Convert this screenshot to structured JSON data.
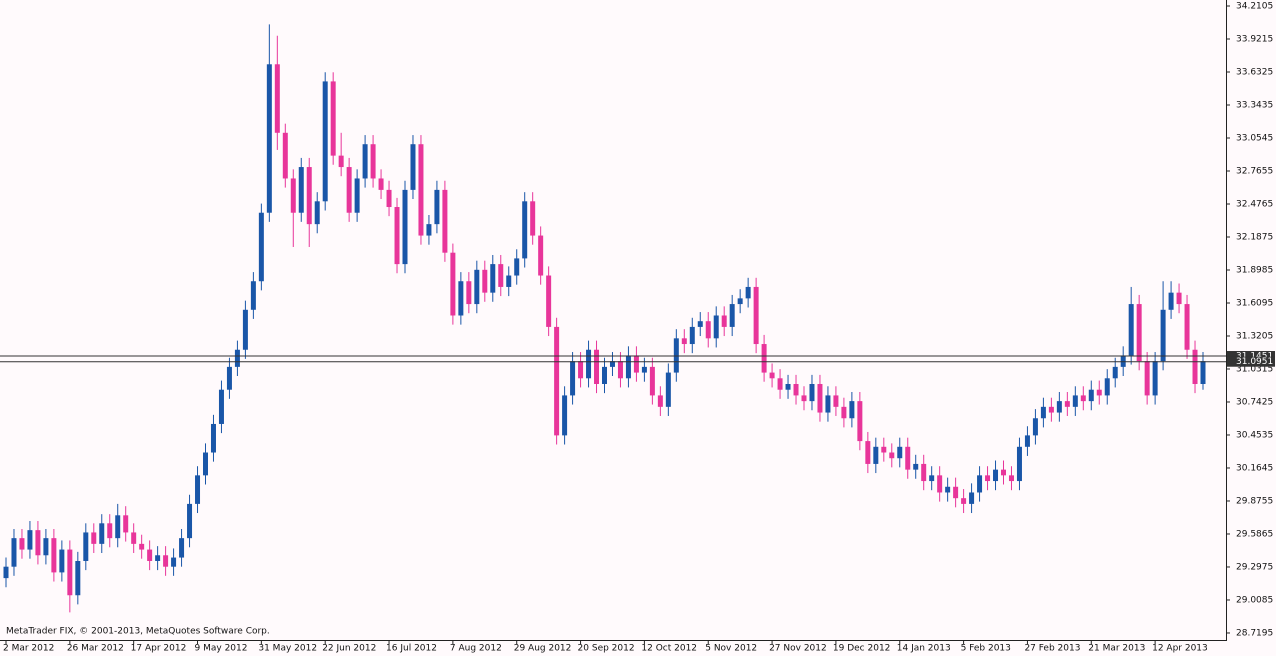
{
  "chart_data": {
    "type": "candlestick",
    "footer": "MetaTrader FIX, © 2001-2013, MetaQuotes Software Corp.",
    "categories": [
      "2 Mar 2012",
      null,
      null,
      null,
      null,
      null,
      null,
      null,
      "26 Mar 2012",
      null,
      null,
      null,
      null,
      null,
      null,
      null,
      "17 Apr 2012",
      null,
      null,
      null,
      null,
      null,
      null,
      null,
      "9 May 2012",
      null,
      null,
      null,
      null,
      null,
      null,
      null,
      "31 May 2012",
      null,
      null,
      null,
      null,
      null,
      null,
      null,
      "22 Jun 2012",
      null,
      null,
      null,
      null,
      null,
      null,
      null,
      "16 Jul 2012",
      null,
      null,
      null,
      null,
      null,
      null,
      null,
      "7 Aug 2012",
      null,
      null,
      null,
      null,
      null,
      null,
      null,
      "29 Aug 2012",
      null,
      null,
      null,
      null,
      null,
      null,
      null,
      "20 Sep 2012",
      null,
      null,
      null,
      null,
      null,
      null,
      null,
      "12 Oct 2012",
      null,
      null,
      null,
      null,
      null,
      null,
      null,
      "5 Nov 2012",
      null,
      null,
      null,
      null,
      null,
      null,
      null,
      "27 Nov 2012",
      null,
      null,
      null,
      null,
      null,
      null,
      null,
      "19 Dec 2012",
      null,
      null,
      null,
      null,
      null,
      null,
      null,
      "14 Jan 2013",
      null,
      null,
      null,
      null,
      null,
      null,
      null,
      "5 Feb 2013",
      null,
      null,
      null,
      null,
      null,
      null,
      null,
      "27 Feb 2013",
      null,
      null,
      null,
      null,
      null,
      null,
      null,
      "21 Mar 2013",
      null,
      null,
      null,
      null,
      null,
      null,
      null,
      "12 Apr 2013",
      null,
      null,
      null,
      null,
      null,
      null
    ],
    "open": [
      29.2,
      29.3,
      29.55,
      29.45,
      29.62,
      29.4,
      29.55,
      29.25,
      29.45,
      29.05,
      29.35,
      29.6,
      29.5,
      29.68,
      29.55,
      29.75,
      29.6,
      29.5,
      29.45,
      29.35,
      29.4,
      29.3,
      29.38,
      29.55,
      29.85,
      30.1,
      30.3,
      30.55,
      30.85,
      31.05,
      31.2,
      31.55,
      31.8,
      32.4,
      33.7,
      33.1,
      32.7,
      32.4,
      32.8,
      32.3,
      32.5,
      33.55,
      32.9,
      32.8,
      32.4,
      32.7,
      33.0,
      32.7,
      32.6,
      32.45,
      31.95,
      32.6,
      33.0,
      32.2,
      32.3,
      32.6,
      32.05,
      31.5,
      31.8,
      31.6,
      31.9,
      31.7,
      31.95,
      31.75,
      31.85,
      32.0,
      32.5,
      32.2,
      31.85,
      31.4,
      30.45,
      30.8,
      31.1,
      30.95,
      31.2,
      30.9,
      31.05,
      31.1,
      30.95,
      31.15,
      31.0,
      31.05,
      30.8,
      30.7,
      31.0,
      31.3,
      31.25,
      31.4,
      31.45,
      31.3,
      31.5,
      31.4,
      31.6,
      31.65,
      31.75,
      31.25,
      31.0,
      30.95,
      30.85,
      30.9,
      30.8,
      30.75,
      30.9,
      30.65,
      30.8,
      30.7,
      30.6,
      30.75,
      30.4,
      30.2,
      30.35,
      30.3,
      30.25,
      30.35,
      30.15,
      30.2,
      30.05,
      30.1,
      29.95,
      30.0,
      29.9,
      29.85,
      29.95,
      30.1,
      30.05,
      30.15,
      30.1,
      30.05,
      30.35,
      30.45,
      30.6,
      30.7,
      30.65,
      30.75,
      30.7,
      30.8,
      30.75,
      30.85,
      30.8,
      30.95,
      31.05,
      31.15,
      31.6,
      31.1,
      30.8,
      31.1,
      31.55,
      31.7,
      31.6,
      31.2,
      30.9
    ],
    "high": [
      29.38,
      29.63,
      29.63,
      29.7,
      29.7,
      29.63,
      29.63,
      29.53,
      29.53,
      29.43,
      29.68,
      29.68,
      29.76,
      29.76,
      29.85,
      29.83,
      29.68,
      29.58,
      29.53,
      29.48,
      29.48,
      29.46,
      29.63,
      29.93,
      30.18,
      30.38,
      30.63,
      30.93,
      31.13,
      31.28,
      31.63,
      31.88,
      32.48,
      34.05,
      33.95,
      33.18,
      32.78,
      32.88,
      32.88,
      32.58,
      33.63,
      33.63,
      33.1,
      32.88,
      32.78,
      33.08,
      33.08,
      32.78,
      32.68,
      32.53,
      32.68,
      33.08,
      33.08,
      32.38,
      32.68,
      32.68,
      32.13,
      31.88,
      31.88,
      31.98,
      31.98,
      32.03,
      32.03,
      31.93,
      32.08,
      32.58,
      32.58,
      32.28,
      31.93,
      31.48,
      30.88,
      31.18,
      31.18,
      31.28,
      31.28,
      31.13,
      31.18,
      31.18,
      31.23,
      31.23,
      31.13,
      31.13,
      30.88,
      31.08,
      31.38,
      31.38,
      31.48,
      31.53,
      31.53,
      31.58,
      31.58,
      31.68,
      31.73,
      31.83,
      31.83,
      31.33,
      31.08,
      31.03,
      30.98,
      30.98,
      30.88,
      30.98,
      30.98,
      30.88,
      30.88,
      30.78,
      30.83,
      30.83,
      30.48,
      30.43,
      30.43,
      30.38,
      30.43,
      30.43,
      30.28,
      30.28,
      30.18,
      30.18,
      30.08,
      30.08,
      29.98,
      30.03,
      30.18,
      30.18,
      30.23,
      30.23,
      30.18,
      30.43,
      30.53,
      30.68,
      30.78,
      30.78,
      30.83,
      30.83,
      30.88,
      30.88,
      30.93,
      30.93,
      31.03,
      31.13,
      31.23,
      31.75,
      31.68,
      31.18,
      31.18,
      31.8,
      31.8,
      31.78,
      31.68,
      31.28,
      31.18
    ],
    "low": [
      29.12,
      29.22,
      29.37,
      29.37,
      29.32,
      29.32,
      29.17,
      29.17,
      28.9,
      28.97,
      29.27,
      29.42,
      29.42,
      29.47,
      29.47,
      29.52,
      29.42,
      29.37,
      29.27,
      29.27,
      29.22,
      29.22,
      29.3,
      29.47,
      29.77,
      30.02,
      30.22,
      30.47,
      30.77,
      30.97,
      31.12,
      31.47,
      31.72,
      32.32,
      32.95,
      32.62,
      32.1,
      32.32,
      32.1,
      32.22,
      32.42,
      32.82,
      32.72,
      32.32,
      32.32,
      32.62,
      32.62,
      32.52,
      32.37,
      31.87,
      31.87,
      32.52,
      32.12,
      32.12,
      32.22,
      31.97,
      31.42,
      31.42,
      31.52,
      31.52,
      31.62,
      31.62,
      31.67,
      31.67,
      31.77,
      31.92,
      32.12,
      31.77,
      31.32,
      30.37,
      30.37,
      30.72,
      30.87,
      30.87,
      30.82,
      30.82,
      30.97,
      30.87,
      30.87,
      30.92,
      30.92,
      30.72,
      30.62,
      30.62,
      30.92,
      31.17,
      31.17,
      31.32,
      31.22,
      31.22,
      31.32,
      31.32,
      31.52,
      31.57,
      31.17,
      30.92,
      30.87,
      30.77,
      30.77,
      30.72,
      30.67,
      30.67,
      30.57,
      30.57,
      30.62,
      30.52,
      30.52,
      30.32,
      30.12,
      30.12,
      30.22,
      30.17,
      30.17,
      30.07,
      30.07,
      29.97,
      29.97,
      29.87,
      29.87,
      29.82,
      29.77,
      29.77,
      29.87,
      29.97,
      29.97,
      30.02,
      29.97,
      29.97,
      30.27,
      30.37,
      30.52,
      30.57,
      30.57,
      30.62,
      30.62,
      30.67,
      30.67,
      30.72,
      30.72,
      30.87,
      30.97,
      31.07,
      31.02,
      30.72,
      30.72,
      31.02,
      31.47,
      31.52,
      31.12,
      30.82,
      30.85
    ],
    "close": [
      29.3,
      29.55,
      29.45,
      29.62,
      29.4,
      29.55,
      29.25,
      29.45,
      29.05,
      29.35,
      29.6,
      29.5,
      29.68,
      29.55,
      29.75,
      29.6,
      29.5,
      29.45,
      29.35,
      29.4,
      29.3,
      29.38,
      29.55,
      29.85,
      30.1,
      30.3,
      30.55,
      30.85,
      31.05,
      31.2,
      31.55,
      31.8,
      32.4,
      33.7,
      33.1,
      32.7,
      32.4,
      32.8,
      32.3,
      32.5,
      33.55,
      32.9,
      32.8,
      32.4,
      32.7,
      33.0,
      32.7,
      32.6,
      32.45,
      31.95,
      32.6,
      33.0,
      32.2,
      32.3,
      32.6,
      32.05,
      31.5,
      31.8,
      31.6,
      31.9,
      31.7,
      31.95,
      31.75,
      31.85,
      32.0,
      32.5,
      32.2,
      31.85,
      31.4,
      30.45,
      30.8,
      31.1,
      30.95,
      31.2,
      30.9,
      31.05,
      31.1,
      30.95,
      31.15,
      31.0,
      31.05,
      30.8,
      30.7,
      31.0,
      31.3,
      31.25,
      31.4,
      31.45,
      31.3,
      31.5,
      31.4,
      31.6,
      31.65,
      31.75,
      31.25,
      31.0,
      30.95,
      30.85,
      30.9,
      30.8,
      30.75,
      30.9,
      30.65,
      30.8,
      30.7,
      30.6,
      30.75,
      30.4,
      30.2,
      30.35,
      30.3,
      30.25,
      30.35,
      30.15,
      30.2,
      30.05,
      30.1,
      29.95,
      30.0,
      29.9,
      29.85,
      29.95,
      30.1,
      30.05,
      30.15,
      30.1,
      30.05,
      30.35,
      30.45,
      30.6,
      30.7,
      30.65,
      30.75,
      30.7,
      30.8,
      30.75,
      30.85,
      30.8,
      30.95,
      31.05,
      31.15,
      31.6,
      31.1,
      30.8,
      31.1,
      31.55,
      31.7,
      31.6,
      31.2,
      30.9,
      31.1
    ],
    "up_color": "#1a56a8",
    "down_color": "#e8359a",
    "ylim": [
      28.658,
      34.263
    ],
    "yticks": [
      34.2105,
      33.9215,
      33.6325,
      33.3435,
      33.0545,
      32.7655,
      32.4765,
      32.1875,
      31.8985,
      31.6095,
      31.3205,
      31.0315,
      30.7425,
      30.4535,
      30.1645,
      29.8755,
      29.5865,
      29.2975,
      29.0085,
      28.7195
    ],
    "price_lines": [
      31.1451,
      31.0951
    ]
  }
}
